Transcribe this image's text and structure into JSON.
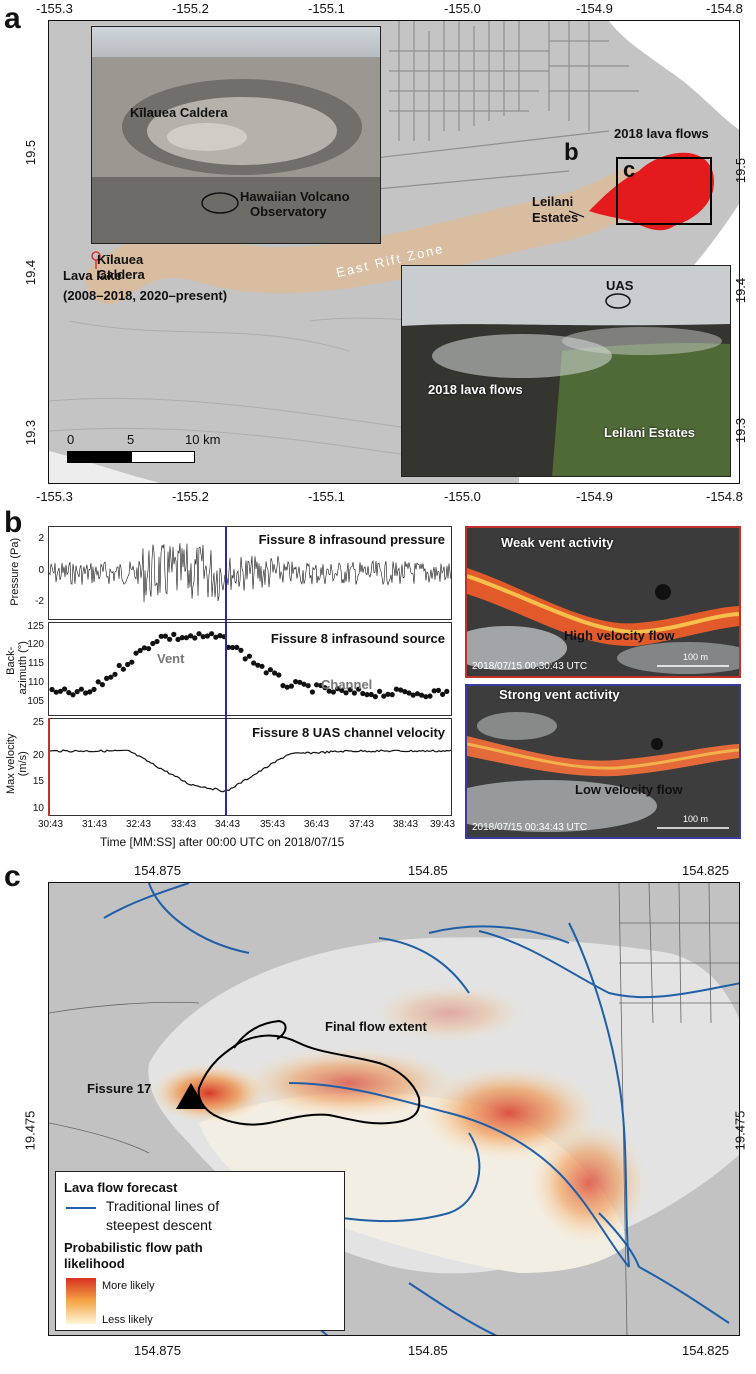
{
  "panel_a": {
    "letter": "a",
    "top_ticks": [
      "-155.3",
      "-155.2",
      "-155.1",
      "-155.0",
      "-154.9",
      "-154.8"
    ],
    "bottom_ticks": [
      "-155.3",
      "-155.2",
      "-155.1",
      "-155.0",
      "-154.9",
      "-154.8"
    ],
    "left_ticks": [
      "19.5",
      "19.4",
      "19.3"
    ],
    "right_ticks": [
      "19.5",
      "19.4",
      "19.3"
    ],
    "photo_caldera": {
      "label_caldera": "Kīlauea Caldera",
      "label_hvo_1": "Hawaiian Volcano",
      "label_hvo_2": "Observatory"
    },
    "photo_uas": {
      "label_uas": "UAS",
      "label_flows": "2018 lava flows",
      "label_estates": "Leilani Estates"
    },
    "labels": {
      "caldera_1": "Kīlauea",
      "caldera_2": "Caldera",
      "lava_lake_1": "Lava lake",
      "lava_lake_2": "(2008–2018, 2020–present)",
      "rift": "East Rift Zone",
      "flows_2018": "2018 lava flows",
      "estates_1": "Leilani",
      "estates_2": "Estates",
      "inset_b": "b",
      "inset_c": "c"
    },
    "scalebar": {
      "t0": "0",
      "t1": "5",
      "t2": "10 km"
    }
  },
  "panel_b": {
    "letter": "b",
    "plot1": {
      "title": "Fissure 8 infrasound pressure",
      "ylabel": "Pressure (Pa)",
      "yticks": [
        "2",
        "0",
        "-2"
      ]
    },
    "plot2": {
      "title": "Fissure 8 infrasound source",
      "ylabel_1": "Back-",
      "ylabel_2": "azimuth (°)",
      "yticks": [
        "125",
        "120",
        "115",
        "110",
        "105"
      ],
      "ann_vent": "Vent",
      "ann_channel": "Channel"
    },
    "plot3": {
      "title": "Fissure 8 UAS channel velocity",
      "ylabel_1": "Max velocity",
      "ylabel_2": "(m/s)",
      "yticks": [
        "25",
        "20",
        "15",
        "10"
      ]
    },
    "xticks": [
      "30:43",
      "31:43",
      "32:43",
      "33:43",
      "34:43",
      "35:43",
      "36:43",
      "37:43",
      "38:43",
      "39:43"
    ],
    "xlabel": "Time [MM:SS] after 00:00 UTC on 2018/07/15",
    "photo_weak": {
      "title": "Weak vent activity",
      "flow": "High velocity flow",
      "stamp": "2018/07/15 00:30:43 UTC",
      "scale": "100 m",
      "border": "#c0312b"
    },
    "photo_strong": {
      "title": "Strong vent activity",
      "flow": "Low velocity flow",
      "stamp": "2018/07/15 00:34:43 UTC",
      "scale": "100 m",
      "border": "#3a3aa0"
    }
  },
  "panel_c": {
    "letter": "c",
    "top_ticks": [
      "154.875",
      "154.85",
      "154.825"
    ],
    "bottom_ticks": [
      "154.875",
      "154.85",
      "154.825"
    ],
    "left_tick": "19.475",
    "right_tick": "19.475",
    "label_fissure": "Fissure 17",
    "label_extent": "Final flow extent",
    "legend": {
      "title": "Lava flow forecast",
      "line_1": "Traditional lines of",
      "line_2": "steepest descent",
      "prob_1": "Probabilistic flow path",
      "prob_2": "likelihood",
      "more": "More likely",
      "less": "Less likely",
      "line_color": "#1f5fa8"
    }
  }
}
